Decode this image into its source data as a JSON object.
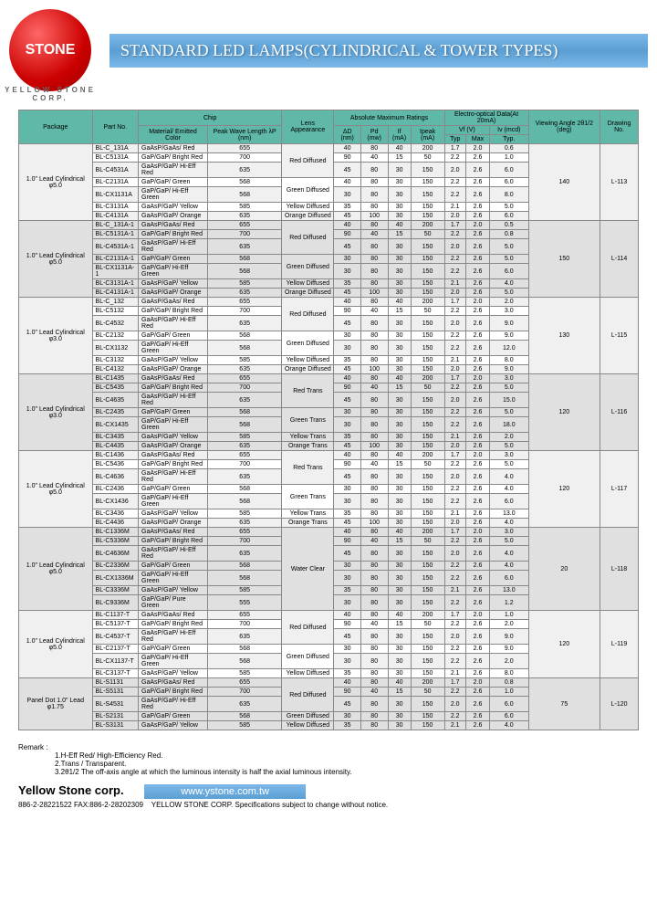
{
  "logo": {
    "text": "STONE",
    "ring_text": "YELLOW STONE CORP."
  },
  "title": "STANDARD LED LAMPS(CYLINDRICAL & TOWER TYPES)",
  "headers": {
    "package": "Package",
    "partno": "Part No.",
    "chip": "Chip",
    "material": "Material/ Emitted Color",
    "peak": "Peak Wave Length λP (nm)",
    "lens": "Lens Appearance",
    "abs": "Absolute Maximum Ratings",
    "eo": "Electro-optical Data(At 20mA)",
    "angle": "Viewing Angle 2θ1/2 (deg)",
    "drawing": "Drawing No.",
    "ad": "ΔD (nm)",
    "pd": "Pd (mw)",
    "if": "If (mA)",
    "ipeak": "Ipeak (mA)",
    "vf": "Vf (V)",
    "iv": "Iv (mcd)",
    "typ": "Typ",
    "max": "Max"
  },
  "groups": [
    {
      "package": "1.0\" Lead Cylindrical φ5.0",
      "angle": "140",
      "drawing": "L-113",
      "rows": [
        {
          "pn": "BL-C_131A",
          "mat": "GaAsP/GaAs/ Red",
          "wl": "655",
          "lens": "Red Diffused",
          "ls": 3,
          "d": [
            "40",
            "80",
            "40",
            "200",
            "1.7",
            "2.0",
            "0.6"
          ]
        },
        {
          "pn": "BL-C5131A",
          "mat": "GaP/GaP/ Bright Red",
          "wl": "700",
          "d": [
            "90",
            "40",
            "15",
            "50",
            "2.2",
            "2.6",
            "1.0"
          ]
        },
        {
          "pn": "BL-C4531A",
          "mat": "GaAsP/GaP/ Hi-Eff Red",
          "wl": "635",
          "d": [
            "45",
            "80",
            "30",
            "150",
            "2.0",
            "2.6",
            "6.0"
          ]
        },
        {
          "pn": "BL-C2131A",
          "mat": "GaP/GaP/ Green",
          "wl": "568",
          "lens": "Green Diffused",
          "ls": 2,
          "d": [
            "40",
            "80",
            "30",
            "150",
            "2.2",
            "2.6",
            "6.0"
          ]
        },
        {
          "pn": "BL-CX1131A",
          "mat": "GaP/GaP/ Hi-Eff Green",
          "wl": "568",
          "d": [
            "30",
            "80",
            "30",
            "150",
            "2.2",
            "2.6",
            "8.0"
          ]
        },
        {
          "pn": "BL-C3131A",
          "mat": "GaAsP/GaP/ Yellow",
          "wl": "585",
          "lens": "Yellow Diffused",
          "ls": 1,
          "d": [
            "35",
            "80",
            "30",
            "150",
            "2.1",
            "2.6",
            "5.0"
          ]
        },
        {
          "pn": "BL-C4131A",
          "mat": "GaAsP/GaP/ Orange",
          "wl": "635",
          "lens": "Orange Diffused",
          "ls": 1,
          "d": [
            "45",
            "100",
            "30",
            "150",
            "2.0",
            "2.6",
            "6.0"
          ]
        }
      ]
    },
    {
      "package": "1.0\" Lead Cylindrical φ5.0",
      "angle": "150",
      "drawing": "L-114",
      "alt": true,
      "rows": [
        {
          "pn": "BL-C_131A-1",
          "mat": "GaAsP/GaAs/ Red",
          "wl": "655",
          "lens": "Red Diffused",
          "ls": 3,
          "d": [
            "40",
            "80",
            "40",
            "200",
            "1.7",
            "2.0",
            "0.5"
          ]
        },
        {
          "pn": "BL-C5131A-1",
          "mat": "GaP/GaP/ Bright Red",
          "wl": "700",
          "d": [
            "90",
            "40",
            "15",
            "50",
            "2.2",
            "2.6",
            "0.8"
          ]
        },
        {
          "pn": "BL-C4531A-1",
          "mat": "GaAsP/GaP/ Hi-Eff Red",
          "wl": "635",
          "d": [
            "45",
            "80",
            "30",
            "150",
            "2.0",
            "2.6",
            "5.0"
          ]
        },
        {
          "pn": "BL-C2131A-1",
          "mat": "GaP/GaP/ Green",
          "wl": "568",
          "lens": "Green Diffused",
          "ls": 2,
          "d": [
            "30",
            "80",
            "30",
            "150",
            "2.2",
            "2.6",
            "5.0"
          ]
        },
        {
          "pn": "BL-CX1131A-1",
          "mat": "GaP/GaP/ Hi-Eff Green",
          "wl": "568",
          "d": [
            "30",
            "80",
            "30",
            "150",
            "2.2",
            "2.6",
            "6.0"
          ]
        },
        {
          "pn": "BL-C3131A-1",
          "mat": "GaAsP/GaP/ Yellow",
          "wl": "585",
          "lens": "Yellow Diffused",
          "ls": 1,
          "d": [
            "35",
            "80",
            "30",
            "150",
            "2.1",
            "2.6",
            "4.0"
          ]
        },
        {
          "pn": "BL-C4131A-1",
          "mat": "GaAsP/GaP/ Orange",
          "wl": "635",
          "lens": "Orange Diffused",
          "ls": 1,
          "d": [
            "45",
            "100",
            "30",
            "150",
            "2.0",
            "2.6",
            "5.0"
          ]
        }
      ]
    },
    {
      "package": "1.0\" Lead Cylindrical φ3.0",
      "angle": "130",
      "drawing": "L-115",
      "rows": [
        {
          "pn": "BL-C_132",
          "mat": "GaAsP/GaAs/ Red",
          "wl": "655",
          "lens": "Red Diffused",
          "ls": 3,
          "d": [
            "40",
            "80",
            "40",
            "200",
            "1.7",
            "2.0",
            "2.0"
          ]
        },
        {
          "pn": "BL-C5132",
          "mat": "GaP/GaP/ Bright Red",
          "wl": "700",
          "d": [
            "90",
            "40",
            "15",
            "50",
            "2.2",
            "2.6",
            "3.0"
          ]
        },
        {
          "pn": "BL-C4532",
          "mat": "GaAsP/GaP/ Hi-Eff Red",
          "wl": "635",
          "d": [
            "45",
            "80",
            "30",
            "150",
            "2.0",
            "2.6",
            "9.0"
          ]
        },
        {
          "pn": "BL-C2132",
          "mat": "GaP/GaP/ Green",
          "wl": "568",
          "lens": "Green Diffused",
          "ls": 2,
          "d": [
            "30",
            "80",
            "30",
            "150",
            "2.2",
            "2.6",
            "9.0"
          ]
        },
        {
          "pn": "BL-CX1132",
          "mat": "GaP/GaP/ Hi-Eff Green",
          "wl": "568",
          "d": [
            "30",
            "80",
            "30",
            "150",
            "2.2",
            "2.6",
            "12.0"
          ]
        },
        {
          "pn": "BL-C3132",
          "mat": "GaAsP/GaP/ Yellow",
          "wl": "585",
          "lens": "Yellow Diffused",
          "ls": 1,
          "d": [
            "35",
            "80",
            "30",
            "150",
            "2.1",
            "2.6",
            "8.0"
          ]
        },
        {
          "pn": "BL-C4132",
          "mat": "GaAsP/GaP/ Orange",
          "wl": "635",
          "lens": "Orange Diffused",
          "ls": 1,
          "d": [
            "45",
            "100",
            "30",
            "150",
            "2.0",
            "2.6",
            "9.0"
          ]
        }
      ]
    },
    {
      "package": "1.0\" Lead Cylindrical φ3.0",
      "angle": "120",
      "drawing": "L-116",
      "alt": true,
      "rows": [
        {
          "pn": "BL-C1435",
          "mat": "GaAsP/GaAs/ Red",
          "wl": "655",
          "lens": "Red Trans",
          "ls": 3,
          "d": [
            "40",
            "80",
            "40",
            "200",
            "1.7",
            "2.0",
            "3.0"
          ]
        },
        {
          "pn": "BL-C5435",
          "mat": "GaP/GaP/ Bright Red",
          "wl": "700",
          "d": [
            "90",
            "40",
            "15",
            "50",
            "2.2",
            "2.6",
            "5.0"
          ]
        },
        {
          "pn": "BL-C4635",
          "mat": "GaAsP/GaP/ Hi-Eff Red",
          "wl": "635",
          "d": [
            "45",
            "80",
            "30",
            "150",
            "2.0",
            "2.6",
            "15.0"
          ]
        },
        {
          "pn": "BL-C2435",
          "mat": "GaP/GaP/ Green",
          "wl": "568",
          "lens": "Green Trans",
          "ls": 2,
          "d": [
            "30",
            "80",
            "30",
            "150",
            "2.2",
            "2.6",
            "5.0"
          ]
        },
        {
          "pn": "BL-CX1435",
          "mat": "GaP/GaP/ Hi-Eff Green",
          "wl": "568",
          "d": [
            "30",
            "80",
            "30",
            "150",
            "2.2",
            "2.6",
            "18.0"
          ]
        },
        {
          "pn": "BL-C3435",
          "mat": "GaAsP/GaP/ Yellow",
          "wl": "585",
          "lens": "Yellow Trans",
          "ls": 1,
          "d": [
            "35",
            "80",
            "30",
            "150",
            "2.1",
            "2.6",
            "2.0"
          ]
        },
        {
          "pn": "BL-C4435",
          "mat": "GaAsP/GaP/ Orange",
          "wl": "635",
          "lens": "Orange Trans",
          "ls": 1,
          "d": [
            "45",
            "100",
            "30",
            "150",
            "2.0",
            "2.6",
            "5.0"
          ]
        }
      ]
    },
    {
      "package": "1.0\" Lead Cylindrical φ5.0",
      "angle": "120",
      "drawing": "L-117",
      "rows": [
        {
          "pn": "BL-C1436",
          "mat": "GaAsP/GaAs/ Red",
          "wl": "655",
          "lens": "Red Trans",
          "ls": 3,
          "d": [
            "40",
            "80",
            "40",
            "200",
            "1.7",
            "2.0",
            "3.0"
          ]
        },
        {
          "pn": "BL-C5436",
          "mat": "GaP/GaP/ Bright Red",
          "wl": "700",
          "d": [
            "90",
            "40",
            "15",
            "50",
            "2.2",
            "2.6",
            "5.0"
          ]
        },
        {
          "pn": "BL-C4636",
          "mat": "GaAsP/GaP/ Hi-Eff Red",
          "wl": "635",
          "d": [
            "45",
            "80",
            "30",
            "150",
            "2.0",
            "2.6",
            "4.0"
          ]
        },
        {
          "pn": "BL-C2436",
          "mat": "GaP/GaP/ Green",
          "wl": "568",
          "lens": "Green Trans",
          "ls": 2,
          "d": [
            "30",
            "80",
            "30",
            "150",
            "2.2",
            "2.6",
            "4.0"
          ]
        },
        {
          "pn": "BL-CX1436",
          "mat": "GaP/GaP/ Hi-Eff Green",
          "wl": "568",
          "d": [
            "30",
            "80",
            "30",
            "150",
            "2.2",
            "2.6",
            "6.0"
          ]
        },
        {
          "pn": "BL-C3436",
          "mat": "GaAsP/GaP/ Yellow",
          "wl": "585",
          "lens": "Yellow Trans",
          "ls": 1,
          "d": [
            "35",
            "80",
            "30",
            "150",
            "2.1",
            "2.6",
            "13.0"
          ]
        },
        {
          "pn": "BL-C4436",
          "mat": "GaAsP/GaP/ Orange",
          "wl": "635",
          "lens": "Orange Trans",
          "ls": 1,
          "d": [
            "45",
            "100",
            "30",
            "150",
            "2.0",
            "2.6",
            "4.0"
          ]
        }
      ]
    },
    {
      "package": "1.0\" Lead Cylindrical φ5.0",
      "angle": "20",
      "drawing": "L-118",
      "alt": true,
      "rows": [
        {
          "pn": "BL-C1336M",
          "mat": "GaAsP/GaAs/ Red",
          "wl": "655",
          "lens": "Water Clear",
          "ls": 7,
          "d": [
            "40",
            "80",
            "40",
            "200",
            "1.7",
            "2.0",
            "3.0"
          ]
        },
        {
          "pn": "BL-C5336M",
          "mat": "GaP/GaP/ Bright Red",
          "wl": "700",
          "d": [
            "90",
            "40",
            "15",
            "50",
            "2.2",
            "2.6",
            "5.0"
          ]
        },
        {
          "pn": "BL-C4636M",
          "mat": "GaAsP/GaP/ Hi-Eff Red",
          "wl": "635",
          "d": [
            "45",
            "80",
            "30",
            "150",
            "2.0",
            "2.6",
            "4.0"
          ]
        },
        {
          "pn": "BL-C2336M",
          "mat": "GaP/GaP/ Green",
          "wl": "568",
          "d": [
            "30",
            "80",
            "30",
            "150",
            "2.2",
            "2.6",
            "4.0"
          ]
        },
        {
          "pn": "BL-CX1336M",
          "mat": "GaP/GaP/ Hi-Eff Green",
          "wl": "568",
          "d": [
            "30",
            "80",
            "30",
            "150",
            "2.2",
            "2.6",
            "6.0"
          ]
        },
        {
          "pn": "BL-C3336M",
          "mat": "GaAsP/GaP/ Yellow",
          "wl": "585",
          "d": [
            "35",
            "80",
            "30",
            "150",
            "2.1",
            "2.6",
            "13.0"
          ]
        },
        {
          "pn": "BL-C9336M",
          "mat": "GaP/GaP/ Pure Green",
          "wl": "555",
          "d": [
            "30",
            "80",
            "30",
            "150",
            "2.2",
            "2.6",
            "1.2"
          ]
        }
      ]
    },
    {
      "package": "1.0\" Lead Cylindrical φ5.0",
      "angle": "120",
      "drawing": "L-119",
      "rows": [
        {
          "pn": "BL-C1137-T",
          "mat": "GaAsP/GaAs/ Red",
          "wl": "655",
          "lens": "Red Diffused",
          "ls": 3,
          "d": [
            "40",
            "80",
            "40",
            "200",
            "1.7",
            "2.0",
            "1.0"
          ]
        },
        {
          "pn": "BL-C5137-T",
          "mat": "GaP/GaP/ Bright Red",
          "wl": "700",
          "d": [
            "90",
            "40",
            "15",
            "50",
            "2.2",
            "2.6",
            "2.0"
          ]
        },
        {
          "pn": "BL-C4537-T",
          "mat": "GaAsP/GaP/ Hi-Eff Red",
          "wl": "635",
          "d": [
            "45",
            "80",
            "30",
            "150",
            "2.0",
            "2.6",
            "9.0"
          ]
        },
        {
          "pn": "BL-C2137-T",
          "mat": "GaP/GaP/ Green",
          "wl": "568",
          "lens": "Green Diffused",
          "ls": 2,
          "d": [
            "30",
            "80",
            "30",
            "150",
            "2.2",
            "2.6",
            "9.0"
          ]
        },
        {
          "pn": "BL-CX1137-T",
          "mat": "GaP/GaP/ Hi-Eff Green",
          "wl": "568",
          "d": [
            "30",
            "80",
            "30",
            "150",
            "2.2",
            "2.6",
            "2.0"
          ]
        },
        {
          "pn": "BL-C3137-T",
          "mat": "GaAsP/GaP/ Yellow",
          "wl": "585",
          "lens": "Yellow Diffused",
          "ls": 1,
          "d": [
            "35",
            "80",
            "30",
            "150",
            "2.1",
            "2.6",
            "8.0"
          ]
        }
      ]
    },
    {
      "package": "Panel Dot 1.0\" Lead φ1.75",
      "angle": "75",
      "drawing": "L-120",
      "alt": true,
      "rows": [
        {
          "pn": "BL-S1131",
          "mat": "GaAsP/GaAs/ Red",
          "wl": "655",
          "lens": "Red Diffused",
          "ls": 3,
          "d": [
            "40",
            "80",
            "40",
            "200",
            "1.7",
            "2.0",
            "0.8"
          ]
        },
        {
          "pn": "BL-S5131",
          "mat": "GaP/GaP/ Bright Red",
          "wl": "700",
          "d": [
            "90",
            "40",
            "15",
            "50",
            "2.2",
            "2.6",
            "1.0"
          ]
        },
        {
          "pn": "BL-S4531",
          "mat": "GaAsP/GaP/ Hi-Eff Red",
          "wl": "635",
          "d": [
            "45",
            "80",
            "30",
            "150",
            "2.0",
            "2.6",
            "6.0"
          ]
        },
        {
          "pn": "BL-S2131",
          "mat": "GaP/GaP/ Green",
          "wl": "568",
          "lens": "Green Diffused",
          "ls": 1,
          "d": [
            "30",
            "80",
            "30",
            "150",
            "2.2",
            "2.6",
            "6.0"
          ]
        },
        {
          "pn": "BL-S3131",
          "mat": "GaAsP/GaP/ Yellow",
          "wl": "585",
          "lens": "Yellow Diffused",
          "ls": 1,
          "d": [
            "35",
            "80",
            "30",
            "150",
            "2.1",
            "2.6",
            "4.0"
          ]
        }
      ]
    }
  ],
  "remark": {
    "label": "Remark :",
    "lines": [
      "1.H-Eff Red/ High-Efficiency Red.",
      "2.Trans / Transparent.",
      "3.2θ1/2 The off-axis angle at which the luminous intensity is half the axial luminous intensity."
    ]
  },
  "footer": {
    "company": "Yellow Stone corp.",
    "url": "www.ystone.com.tw",
    "contact": "886-2-28221522 FAX:886-2-28202309",
    "note": "YELLOW STONE CORP. Specifications subject to change without notice."
  }
}
